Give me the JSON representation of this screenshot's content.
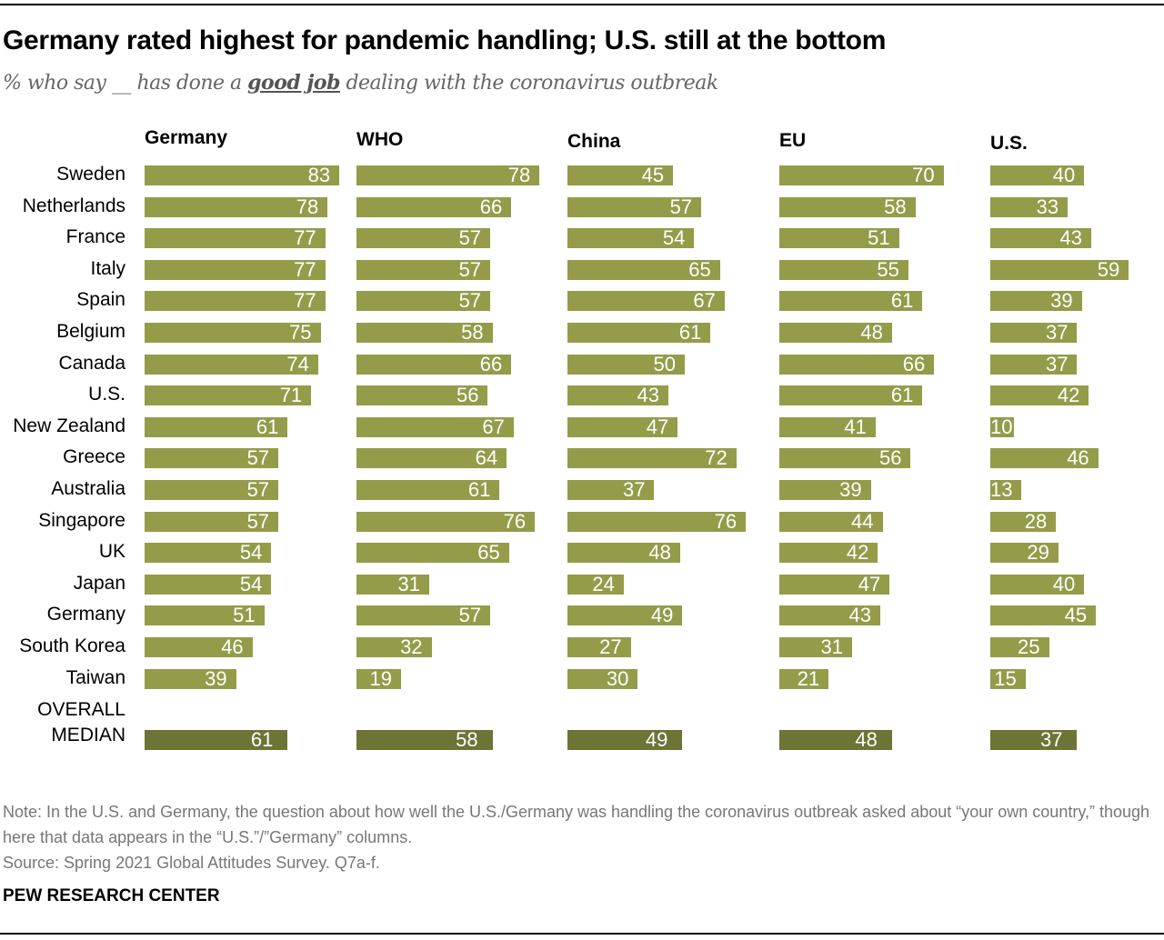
{
  "title": "Germany rated highest for pandemic handling; U.S. still at the bottom",
  "subtitle": {
    "before": "% who say __ has done a ",
    "emph": "good job",
    "after": " dealing with the coronavirus outbreak"
  },
  "note": "Note: In the U.S. and Germany, the question about how well the U.S./Germany was handling the coronavirus outbreak asked about “your own country,” though here that data appears in the “U.S.”/”Germany” columns.",
  "source": "Source: Spring 2021 Global Attitudes Survey. Q7a-f.",
  "brand": "PEW RESEARCH CENTER",
  "colors": {
    "bar": "#949c4a",
    "median_bar": "#6e7336"
  },
  "chart_data": {
    "type": "bar",
    "orientation": "horizontal",
    "categories": [
      "Sweden",
      "Netherlands",
      "France",
      "Italy",
      "Spain",
      "Belgium",
      "Canada",
      "U.S.",
      "New Zealand",
      "Greece",
      "Australia",
      "Singapore",
      "UK",
      "Japan",
      "Germany",
      "South Korea",
      "Taiwan"
    ],
    "median_label": [
      "OVERALL",
      "MEDIAN"
    ],
    "series": [
      {
        "name": "Germany",
        "values": [
          83,
          78,
          77,
          77,
          77,
          75,
          74,
          71,
          61,
          57,
          57,
          57,
          54,
          54,
          51,
          46,
          39
        ],
        "median": 61
      },
      {
        "name": "WHO",
        "values": [
          78,
          66,
          57,
          57,
          57,
          58,
          66,
          56,
          67,
          64,
          61,
          76,
          65,
          31,
          57,
          32,
          19
        ],
        "median": 58
      },
      {
        "name": "China",
        "values": [
          45,
          57,
          54,
          65,
          67,
          61,
          50,
          43,
          47,
          72,
          37,
          76,
          48,
          24,
          49,
          27,
          30
        ],
        "median": 49
      },
      {
        "name": "EU",
        "values": [
          70,
          58,
          51,
          55,
          61,
          48,
          66,
          61,
          41,
          56,
          39,
          44,
          42,
          47,
          43,
          31,
          21
        ],
        "median": 48
      },
      {
        "name": "U.S.",
        "values": [
          40,
          33,
          43,
          59,
          39,
          37,
          37,
          42,
          10,
          46,
          13,
          28,
          29,
          40,
          45,
          25,
          15
        ],
        "median": 37
      }
    ]
  }
}
